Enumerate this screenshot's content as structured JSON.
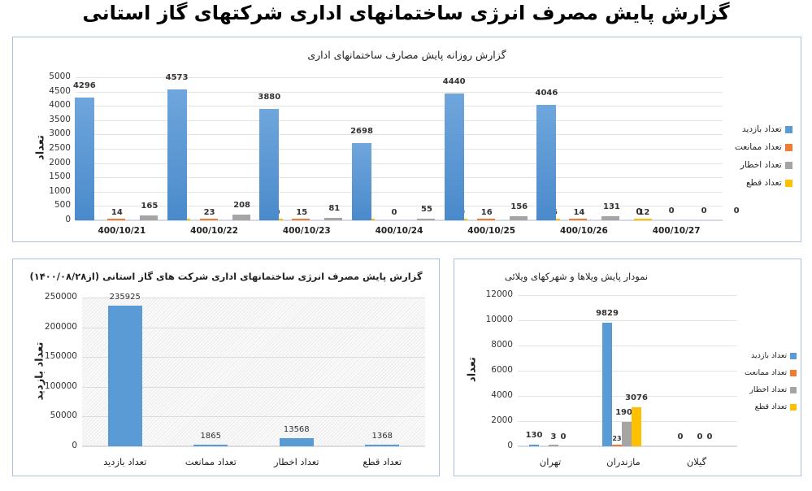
{
  "page_title": "گزارش پایش مصرف انرژی ساختمانهای اداری شرکتهای گاز استانی",
  "colors": {
    "visit": "#5b9bd5",
    "prevent": "#ed7d31",
    "warning": "#a5a5a5",
    "cut": "#ffc000",
    "panel_border": "#aebfe0"
  },
  "legend_labels": [
    "تعداد بازدید",
    "تعداد ممانعت",
    "تعداد اخطار",
    "تعداد قطع"
  ],
  "chart_data": [
    {
      "id": "daily",
      "type": "bar",
      "title": "گزارش روزانه پایش مصارف ساختمانهای اداری",
      "xlabel": "",
      "ylabel": "تعداد",
      "ylim": [
        0,
        5000
      ],
      "yticks": [
        0,
        500,
        1000,
        1500,
        2000,
        2500,
        3000,
        3500,
        4000,
        4500,
        5000
      ],
      "grid": true,
      "legend_position": "right",
      "categories": [
        "400/10/21",
        "400/10/22",
        "400/10/23",
        "400/10/24",
        "400/10/25",
        "400/10/26",
        "400/10/27"
      ],
      "series": [
        {
          "name": "تعداد بازدید",
          "values": [
            4296,
            4573,
            3880,
            2698,
            4440,
            4046,
            0
          ]
        },
        {
          "name": "تعداد ممانعت",
          "values": [
            14,
            23,
            15,
            0,
            16,
            14,
            0
          ]
        },
        {
          "name": "تعداد اخطار",
          "values": [
            165,
            208,
            81,
            55,
            156,
            131,
            0
          ]
        },
        {
          "name": "تعداد قطع",
          "values": [
            5,
            10,
            5,
            20,
            26,
            12,
            0
          ]
        }
      ]
    },
    {
      "id": "cumulative",
      "type": "bar",
      "title": "گزارش پایش مصرف انرژی ساختمانهای اداری شرکت های گاز استانی (از۱۴۰۰/۰۸/۲۸)",
      "xlabel": "",
      "ylabel": "تعداد بازدید",
      "ylim": [
        0,
        250000
      ],
      "yticks": [
        0,
        50000,
        100000,
        150000,
        200000,
        250000
      ],
      "grid": true,
      "legend_position": "none",
      "categories": [
        "تعداد بازدید",
        "تعداد ممانعت",
        "تعداد اخطار",
        "تعداد قطع"
      ],
      "values": [
        235925,
        1865,
        13568,
        1368
      ]
    },
    {
      "id": "villas",
      "type": "bar",
      "title": "نمودار پایش ویلاها و شهرکهای ویلائی",
      "xlabel": "",
      "ylabel": "تعداد",
      "ylim": [
        0,
        12000
      ],
      "yticks": [
        0,
        2000,
        4000,
        6000,
        8000,
        10000,
        12000
      ],
      "grid": true,
      "legend_position": "right",
      "categories": [
        "تهران",
        "مازندران",
        "گیلان"
      ],
      "series": [
        {
          "name": "تعداد بازدید",
          "values": [
            130,
            9829,
            0
          ]
        },
        {
          "name": "تعداد ممانعت",
          "values": [
            null,
            23,
            null
          ]
        },
        {
          "name": "تعداد اخطار",
          "values": [
            3,
            1908,
            0
          ]
        },
        {
          "name": "تعداد قطع",
          "values": [
            0,
            3076,
            0
          ]
        }
      ]
    }
  ]
}
